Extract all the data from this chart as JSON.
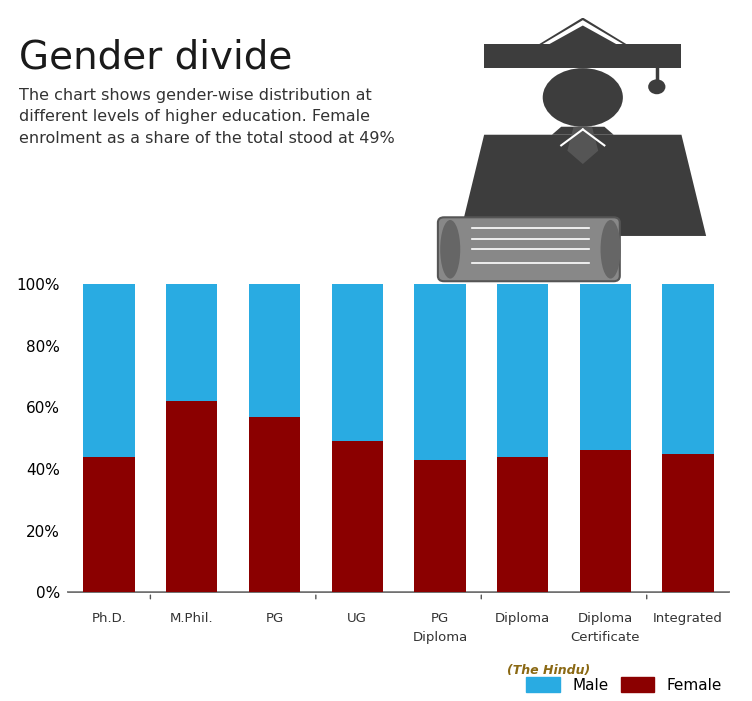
{
  "categories": [
    "Ph.D.",
    "M.Phil.",
    "PG",
    "UG",
    "PG\nDiploma",
    "Diploma",
    "Certificate",
    "Integrated"
  ],
  "x_labels": [
    [
      "Ph.D.",
      ""
    ],
    [
      "M.Phil.",
      ""
    ],
    [
      "PG",
      ""
    ],
    [
      "UG",
      ""
    ],
    [
      "PG",
      "Diploma"
    ],
    [
      "Diploma",
      ""
    ],
    [
      "Diploma",
      "Certificate"
    ],
    [
      "Integrated",
      ""
    ]
  ],
  "female_pct": [
    44,
    62,
    57,
    49,
    43,
    44,
    46,
    45
  ],
  "male_color": "#29ABE2",
  "female_color": "#8B0000",
  "title": "Gender divide",
  "subtitle_lines": [
    "The chart shows gender-wise distribution at",
    "different levels of higher education. Female",
    "enrolment as a share of the total stood at 49%"
  ],
  "bg_color": "#FFFFFF",
  "top_stripe_color": "#9E9E9E",
  "source_text": "(The Hindu)",
  "legend_male": "Male",
  "legend_female": "Female",
  "fig_color": "#3D3D3D"
}
